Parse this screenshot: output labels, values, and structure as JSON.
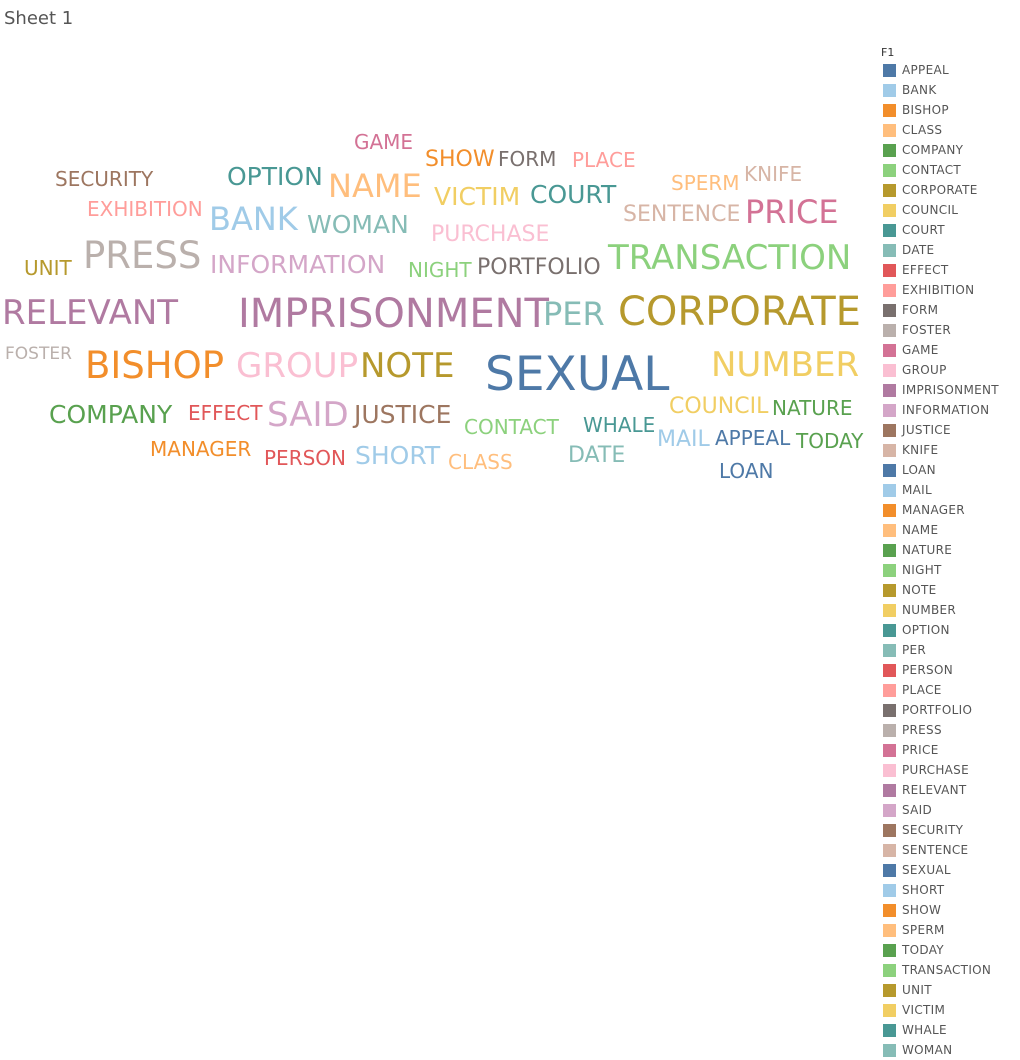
{
  "sheet": {
    "title": "Sheet 1"
  },
  "legend": {
    "title": "F1"
  },
  "chart_data": {
    "type": "wordcloud",
    "title": "Sheet 1",
    "legend_field": "F1",
    "legend_placement": "right",
    "words": [
      {
        "text": "APPEAL",
        "color": "#4e79a7",
        "size": 3
      },
      {
        "text": "BANK",
        "color": "#a0cbe8",
        "size": 6
      },
      {
        "text": "BISHOP",
        "color": "#f28e2b",
        "size": 8
      },
      {
        "text": "CLASS",
        "color": "#ffbe7d",
        "size": 3
      },
      {
        "text": "COMPANY",
        "color": "#59a14f",
        "size": 5
      },
      {
        "text": "CONTACT",
        "color": "#8cd17d",
        "size": 3
      },
      {
        "text": "CORPORATE",
        "color": "#b6992d",
        "size": 9
      },
      {
        "text": "COUNCIL",
        "color": "#f1ce63",
        "size": 4
      },
      {
        "text": "COURT",
        "color": "#499894",
        "size": 5
      },
      {
        "text": "DATE",
        "color": "#86bcb6",
        "size": 4
      },
      {
        "text": "EFFECT",
        "color": "#e15759",
        "size": 3
      },
      {
        "text": "EXHIBITION",
        "color": "#ff9d9a",
        "size": 3
      },
      {
        "text": "FORM",
        "color": "#79706e",
        "size": 3
      },
      {
        "text": "FOSTER",
        "color": "#bab0ac",
        "size": 2
      },
      {
        "text": "GAME",
        "color": "#d37295",
        "size": 3
      },
      {
        "text": "GROUP",
        "color": "#fabfd2",
        "size": 7
      },
      {
        "text": "IMPRISONMENT",
        "color": "#b07aa1",
        "size": 9
      },
      {
        "text": "INFORMATION",
        "color": "#d4a6c8",
        "size": 5
      },
      {
        "text": "JUSTICE",
        "color": "#9d7660",
        "size": 5
      },
      {
        "text": "KNIFE",
        "color": "#d7b5a6",
        "size": 3
      },
      {
        "text": "LOAN",
        "color": "#4e79a7",
        "size": 3
      },
      {
        "text": "MAIL",
        "color": "#a0cbe8",
        "size": 4
      },
      {
        "text": "MANAGER",
        "color": "#f28e2b",
        "size": 3
      },
      {
        "text": "NAME",
        "color": "#ffbe7d",
        "size": 6
      },
      {
        "text": "NATURE",
        "color": "#59a14f",
        "size": 3
      },
      {
        "text": "NIGHT",
        "color": "#8cd17d",
        "size": 3
      },
      {
        "text": "NOTE",
        "color": "#b6992d",
        "size": 7
      },
      {
        "text": "NUMBER",
        "color": "#f1ce63",
        "size": 7
      },
      {
        "text": "OPTION",
        "color": "#499894",
        "size": 5
      },
      {
        "text": "PER",
        "color": "#86bcb6",
        "size": 6
      },
      {
        "text": "PERSON",
        "color": "#e15759",
        "size": 3
      },
      {
        "text": "PLACE",
        "color": "#ff9d9a",
        "size": 3
      },
      {
        "text": "PORTFOLIO",
        "color": "#79706e",
        "size": 4
      },
      {
        "text": "PRESS",
        "color": "#bab0ac",
        "size": 8
      },
      {
        "text": "PRICE",
        "color": "#d37295",
        "size": 6
      },
      {
        "text": "PURCHASE",
        "color": "#fabfd2",
        "size": 4
      },
      {
        "text": "RELEVANT",
        "color": "#b07aa1",
        "size": 7
      },
      {
        "text": "SAID",
        "color": "#d4a6c8",
        "size": 7
      },
      {
        "text": "SECURITY",
        "color": "#9d7660",
        "size": 3
      },
      {
        "text": "SENTENCE",
        "color": "#d7b5a6",
        "size": 4
      },
      {
        "text": "SEXUAL",
        "color": "#4e79a7",
        "size": 10
      },
      {
        "text": "SHORT",
        "color": "#a0cbe8",
        "size": 5
      },
      {
        "text": "SHOW",
        "color": "#f28e2b",
        "size": 4
      },
      {
        "text": "SPERM",
        "color": "#ffbe7d",
        "size": 3
      },
      {
        "text": "TODAY",
        "color": "#59a14f",
        "size": 3
      },
      {
        "text": "TRANSACTION",
        "color": "#8cd17d",
        "size": 7
      },
      {
        "text": "UNIT",
        "color": "#b6992d",
        "size": 3
      },
      {
        "text": "VICTIM",
        "color": "#f1ce63",
        "size": 5
      },
      {
        "text": "WHALE",
        "color": "#499894",
        "size": 3
      },
      {
        "text": "WOMAN",
        "color": "#86bcb6",
        "size": 5
      }
    ]
  }
}
